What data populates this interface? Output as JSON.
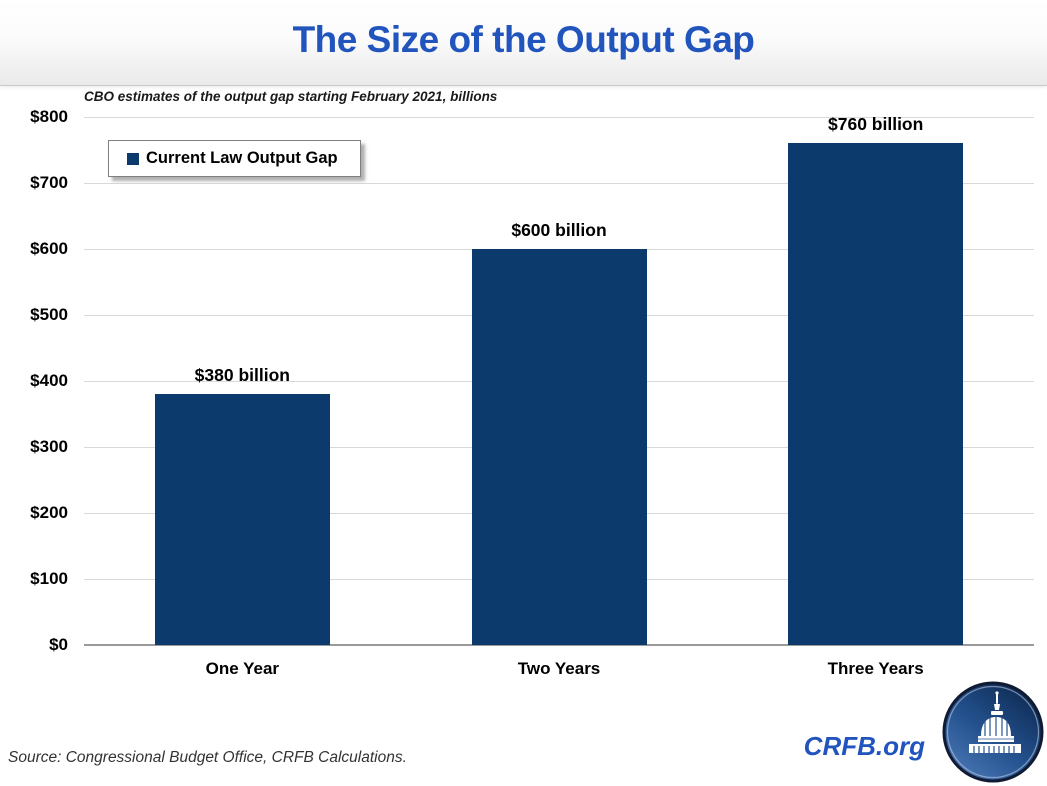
{
  "header": {
    "title": "The Size of the Output Gap"
  },
  "subtitle": "CBO estimates of the output gap starting February 2021, billions",
  "legend": {
    "label": "Current Law Output Gap"
  },
  "footer": {
    "source": "Source: Congressional Budget Office, CRFB Calculations.",
    "brand": "CRFB.org",
    "logo_icon": "capitol-dome-icon"
  },
  "colors": {
    "title_blue": "#2155bd",
    "brand_blue": "#2155bd",
    "bar_navy": "#0c3a6d",
    "gridline": "#d9d9d9",
    "zero_axis": "#9a9a9a"
  },
  "chart_data": {
    "type": "bar",
    "title": "The Size of the Output Gap",
    "subtitle": "CBO estimates of the output gap starting February 2021, billions",
    "series_name": "Current Law Output Gap",
    "categories": [
      "One Year",
      "Two Years",
      "Three Years"
    ],
    "values": [
      380,
      600,
      760
    ],
    "value_labels": [
      "$380 billion",
      "$600 billion",
      "$760 billion"
    ],
    "ylim": [
      0,
      800
    ],
    "ytick_interval": 100,
    "ytick_labels": [
      "$0",
      "$100",
      "$200",
      "$300",
      "$400",
      "$500",
      "$600",
      "$700",
      "$800"
    ],
    "grid": true,
    "legend_position": "top-left",
    "bar_color": "#0c3a6d"
  }
}
